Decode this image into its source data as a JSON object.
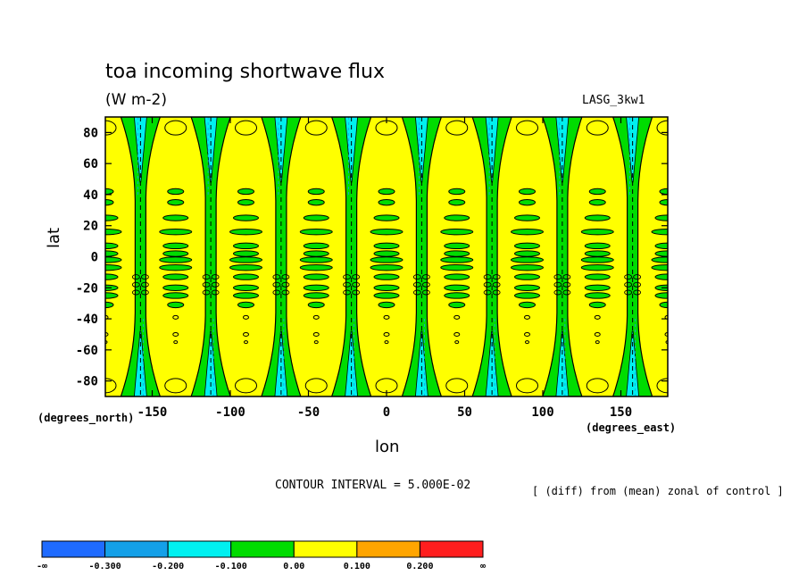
{
  "chart_data": {
    "type": "heatmap",
    "title": "toa incoming shortwave flux",
    "subtitle": "(W m-2)",
    "experiment_label": "LASG_3kw1",
    "xlabel": "lon",
    "ylabel": "lat",
    "x_units": "(degrees_east)",
    "y_units": "(degrees_north)",
    "xlim": [
      -180,
      180
    ],
    "ylim": [
      -90,
      90
    ],
    "x_ticks": [
      -150,
      -100,
      -50,
      0,
      50,
      100,
      150
    ],
    "y_ticks": [
      80,
      60,
      40,
      20,
      0,
      -20,
      -40,
      -60,
      -80
    ],
    "x_tick_labels": [
      "-150",
      "-100",
      "-50",
      "0",
      "50",
      "100",
      "150"
    ],
    "y_tick_labels": [
      "80",
      "60",
      "40",
      "20",
      "0",
      "-20",
      "-40",
      "-60",
      "-80"
    ],
    "contour_interval": 0.05,
    "contour_interval_text": "CONTOUR INTERVAL = 5.000E-02",
    "description": "[ (diff) from (mean) zonal of control ]",
    "stripe_centers_lon": [
      -157.5,
      -112.5,
      -67.5,
      -22.5,
      22.5,
      67.5,
      112.5,
      157.5
    ],
    "colorbar": {
      "levels": [
        -0.3,
        -0.2,
        -0.1,
        0.0,
        0.1,
        0.2
      ],
      "labels": [
        "-∞",
        "-0.300",
        "-0.200",
        "-0.100",
        "0.00",
        "0.100",
        "0.200",
        "∞"
      ],
      "colors": [
        "#1f6bff",
        "#14a0e8",
        "#00f0f0",
        "#00dc00",
        "#ffff00",
        "#ffa500",
        "#ff1e1e"
      ]
    }
  }
}
